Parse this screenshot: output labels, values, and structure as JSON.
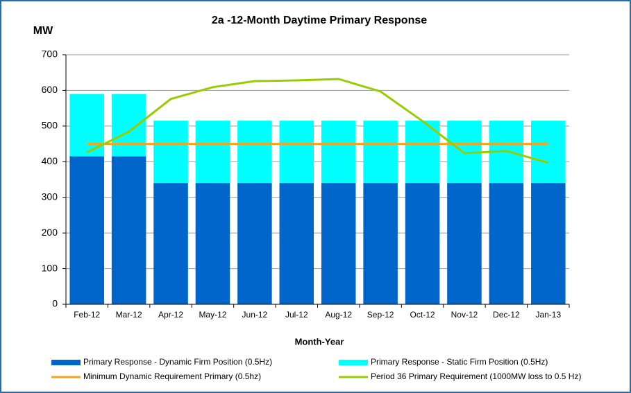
{
  "chart_data": {
    "type": "bar",
    "title": "2a -12-Month Daytime Primary Response",
    "y_label": "MW",
    "x_label": "Month-Year",
    "categories": [
      "Feb-12",
      "Mar-12",
      "Apr-12",
      "May-12",
      "Jun-12",
      "Jul-12",
      "Aug-12",
      "Sep-12",
      "Oct-12",
      "Nov-12",
      "Dec-12",
      "Jan-13"
    ],
    "series": [
      {
        "name": "Primary Response - Dynamic Firm Position (0.5Hz)",
        "color": "#0066cc",
        "kind": "bar",
        "values": [
          415,
          415,
          340,
          340,
          340,
          340,
          340,
          340,
          340,
          340,
          340,
          340
        ]
      },
      {
        "name": "Primary Response - Static Firm Position (0.5Hz)",
        "color": "#00ffff",
        "kind": "bar",
        "values": [
          175,
          175,
          175,
          175,
          175,
          175,
          175,
          175,
          175,
          175,
          175,
          175
        ]
      },
      {
        "name": "Minimum Dynamic Requirement Primary (0.5hz)",
        "color": "#f7a21b",
        "kind": "line",
        "values": [
          450,
          450,
          450,
          450,
          450,
          450,
          450,
          450,
          450,
          450,
          450,
          450
        ]
      },
      {
        "name": "Period 36 Primary Requirement (1000MW loss to 0.5 Hz)",
        "color": "#99cc00",
        "kind": "line",
        "values": [
          426,
          484,
          576,
          609,
          626,
          628,
          632,
          597,
          514,
          424,
          430,
          397
        ]
      }
    ],
    "stacked": true,
    "ylim": [
      0,
      700
    ],
    "yticks": [
      0,
      100,
      200,
      300,
      400,
      500,
      600,
      700
    ],
    "grid": true
  }
}
